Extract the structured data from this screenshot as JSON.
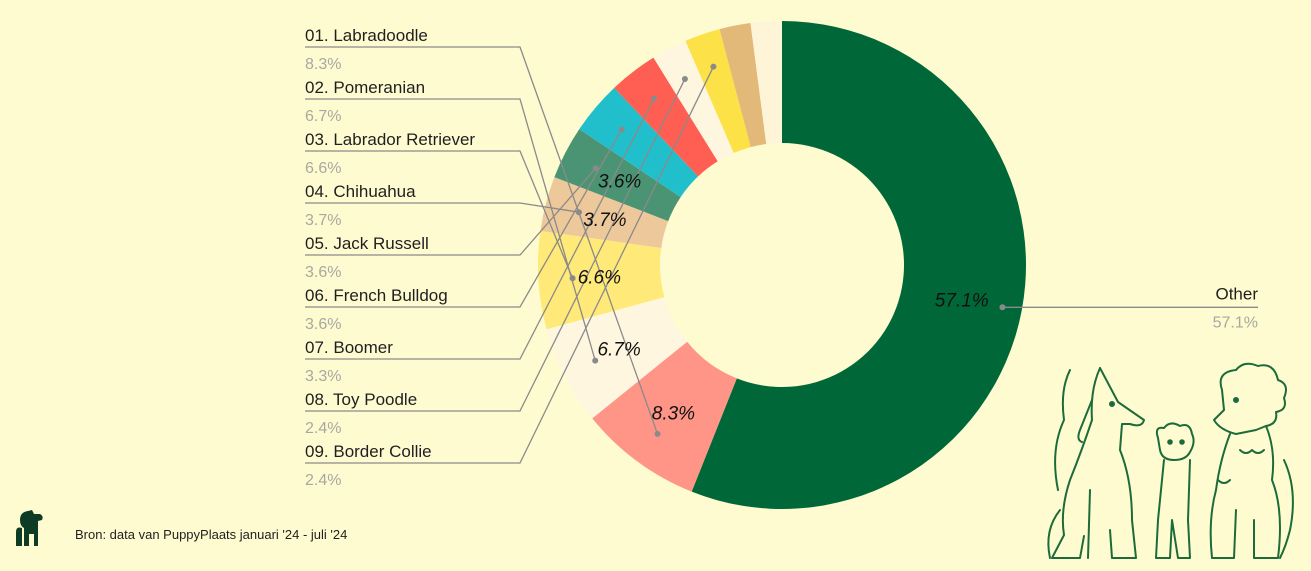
{
  "chart_data": {
    "type": "pie",
    "variant": "donut",
    "categories": [
      "Other",
      "01. Labradoodle",
      "02. Pomeranian",
      "03. Labrador Retriever",
      "04. Chihuahua",
      "05. Jack Russell",
      "06. French Bulldog",
      "07. Boomer",
      "08. Toy Poodle",
      "09. Border Collie",
      "",
      ""
    ],
    "values": [
      57.1,
      8.3,
      6.7,
      6.6,
      3.7,
      3.6,
      3.6,
      3.3,
      2.4,
      2.4,
      2.1,
      2.1
    ],
    "value_labels": [
      "57.1%",
      "8.3%",
      "6.7%",
      "6.6%",
      "3.7%",
      "3.6%",
      "3.6%",
      "3.3%",
      "2.4%",
      "2.4%",
      "",
      ""
    ],
    "colors": [
      "#006838",
      "#ff9587",
      "#fff6df",
      "#ffe978",
      "#edc89b",
      "#4a9473",
      "#21bfcb",
      "#ff5f52",
      "#fff6df",
      "#fde247",
      "#e3b97a",
      "#fef5d8"
    ],
    "inside_labels": [
      true,
      true,
      true,
      true,
      true,
      true,
      false,
      false,
      false,
      false,
      false,
      false
    ],
    "legend_placement": "left-callouts"
  },
  "footer": {
    "source": "Bron: data van PuppyPlaats januari '24 - juli '24"
  },
  "icons": {
    "logo": "dog-logo-icon",
    "illustration": "dogs-illustration"
  }
}
